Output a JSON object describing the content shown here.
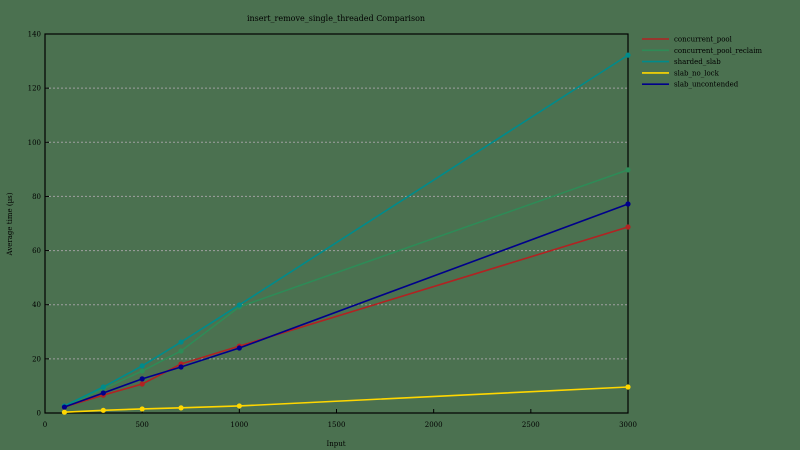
{
  "chart_data": {
    "type": "line",
    "title": "insert_remove_single_threaded Comparison",
    "xlabel": "Input",
    "ylabel": "Average time (µs)",
    "xlim": [
      0,
      3000
    ],
    "ylim": [
      0,
      140
    ],
    "xticks": [
      0,
      500,
      1000,
      1500,
      2000,
      2500,
      3000
    ],
    "yticks": [
      0,
      20,
      40,
      60,
      80,
      100,
      120,
      140
    ],
    "grid": "horizontal dashed",
    "legend_position": "outside right top",
    "x": [
      100,
      300,
      500,
      700,
      1000,
      3000
    ],
    "series": [
      {
        "name": "concurrent_pool",
        "color": "#b22222",
        "values": [
          2.2,
          6.6,
          10.7,
          18.1,
          24.7,
          68.7
        ]
      },
      {
        "name": "concurrent_pool_reclaim",
        "color": "#2e8b57",
        "values": [
          2.4,
          8.9,
          15.5,
          22.9,
          39.2,
          89.8
        ]
      },
      {
        "name": "sharded_slab",
        "color": "#008b8b",
        "values": [
          2.6,
          9.6,
          17.4,
          26.2,
          39.9,
          132.2
        ]
      },
      {
        "name": "slab_no_lock",
        "color": "#ffd700",
        "values": [
          0.3,
          1.0,
          1.5,
          1.9,
          2.6,
          9.6
        ]
      },
      {
        "name": "slab_uncontended",
        "color": "#00008b",
        "values": [
          2.2,
          7.4,
          12.6,
          17.0,
          24.0,
          77.2
        ]
      }
    ]
  }
}
